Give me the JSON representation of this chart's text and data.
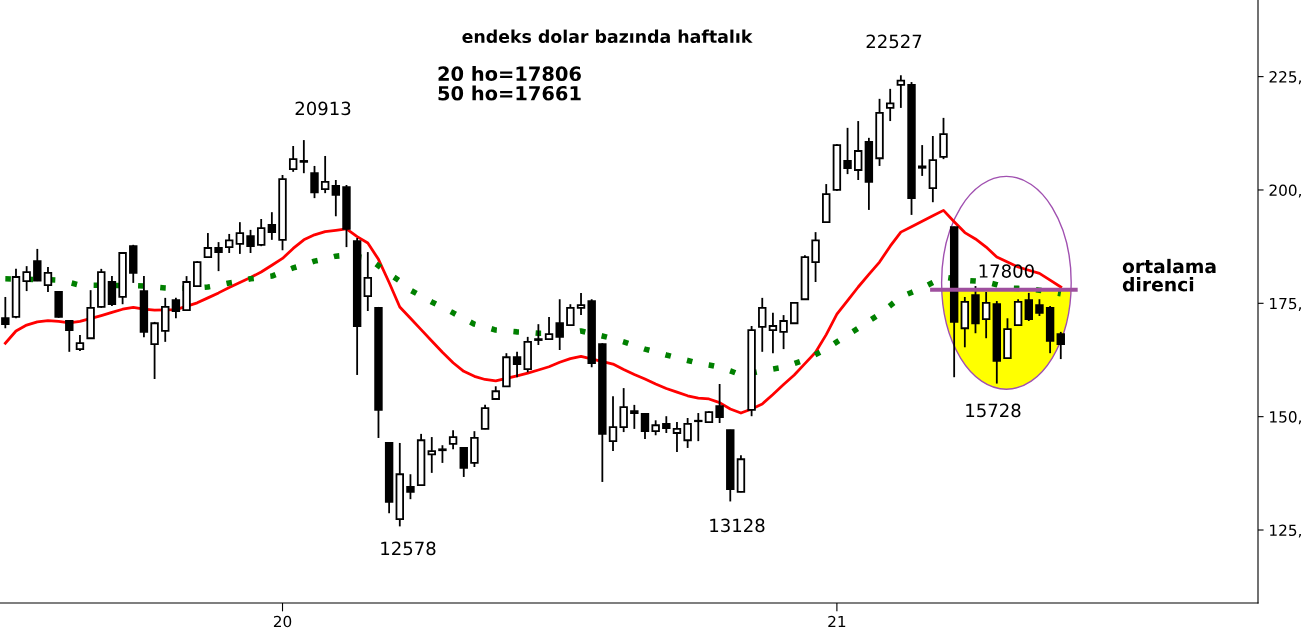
{
  "chart_data": {
    "type": "candlestick",
    "title": "endeks dolar bazında haftalık",
    "subtitle": "20 ho=17806\n50 ho=17661",
    "annotations": [
      "20913",
      "22527",
      "12578",
      "13128",
      "15728",
      "ortalama\ndirenci"
    ],
    "categories": [
      null,
      null,
      null,
      null,
      null,
      null,
      null,
      null,
      null,
      null,
      null,
      null,
      null,
      null,
      null,
      null,
      null,
      null,
      null,
      null,
      null,
      null,
      null,
      null,
      null,
      null,
      "20",
      null,
      null,
      null,
      null,
      null,
      null,
      null,
      null,
      null,
      null,
      null,
      null,
      null,
      null,
      null,
      null,
      null,
      null,
      null,
      null,
      null,
      null,
      null,
      null,
      null,
      null,
      null,
      null,
      null,
      null,
      null,
      null,
      null,
      null,
      null,
      null,
      null,
      null,
      null,
      null,
      null,
      null,
      null,
      null,
      null,
      null,
      null,
      null,
      null,
      null,
      null,
      "21",
      null,
      null,
      null,
      null,
      null,
      null,
      null,
      null,
      null,
      null,
      null,
      null,
      null,
      null,
      null,
      null,
      null,
      null,
      null,
      null,
      null,
      null,
      null,
      null,
      null,
      null,
      null,
      null,
      null,
      null,
      null,
      null,
      null,
      null,
      null,
      null,
      null,
      null,
      null
    ],
    "ohlc": [
      [
        171.7,
        176.4,
        169.5,
        170.4
      ],
      [
        172.0,
        182.6,
        171.7,
        180.8
      ],
      [
        179.9,
        183.2,
        177.7,
        181.9
      ],
      [
        184.3,
        187.0,
        179.9,
        180.0
      ],
      [
        179.0,
        183.0,
        177.5,
        181.7
      ],
      [
        177.5,
        177.7,
        171.8,
        172.0
      ],
      [
        171.1,
        171.3,
        164.3,
        169.1
      ],
      [
        164.9,
        168.0,
        164.5,
        166.2
      ],
      [
        167.3,
        177.9,
        167.2,
        174.0
      ],
      [
        174.2,
        182.6,
        174.0,
        181.9
      ],
      [
        179.7,
        181.0,
        174.4,
        174.8
      ],
      [
        176.4,
        186.2,
        174.8,
        186.1
      ],
      [
        187.6,
        187.9,
        179.5,
        181.7
      ],
      [
        177.7,
        181.0,
        167.5,
        168.7
      ],
      [
        166.0,
        170.9,
        158.3,
        170.6
      ],
      [
        168.9,
        176.2,
        166.5,
        174.2
      ],
      [
        175.7,
        176.2,
        171.7,
        173.3
      ],
      [
        173.5,
        181.0,
        173.4,
        179.7
      ],
      [
        178.8,
        184.3,
        178.7,
        184.1
      ],
      [
        185.2,
        190.5,
        185.1,
        187.2
      ],
      [
        187.2,
        188.5,
        182.1,
        186.3
      ],
      [
        187.4,
        190.3,
        186.1,
        188.9
      ],
      [
        188.1,
        192.9,
        185.9,
        190.5
      ],
      [
        189.8,
        191.2,
        186.1,
        187.6
      ],
      [
        187.9,
        193.6,
        187.6,
        191.6
      ],
      [
        192.3,
        195.1,
        189.0,
        190.7
      ],
      [
        189.0,
        203.3,
        186.7,
        202.4
      ],
      [
        204.6,
        209.7,
        204.0,
        206.8
      ],
      [
        206.2,
        211.0,
        203.7,
        206.4
      ],
      [
        203.7,
        205.3,
        198.2,
        199.5
      ],
      [
        200.2,
        207.5,
        199.3,
        201.8
      ],
      [
        200.9,
        202.2,
        194.2,
        198.9
      ],
      [
        200.6,
        201.1,
        187.4,
        191.4
      ],
      [
        188.7,
        189.4,
        159.2,
        170.0
      ],
      [
        176.6,
        186.3,
        173.3,
        180.6
      ],
      [
        174.0,
        174.2,
        145.3,
        151.5
      ],
      [
        144.2,
        144.3,
        128.7,
        131.2
      ],
      [
        127.4,
        144.2,
        125.8,
        137.3
      ],
      [
        134.5,
        137.3,
        131.8,
        133.4
      ],
      [
        134.9,
        146.2,
        134.7,
        144.8
      ],
      [
        141.7,
        145.5,
        137.6,
        142.4
      ],
      [
        142.6,
        143.7,
        139.8,
        142.8
      ],
      [
        144.0,
        147.0,
        142.8,
        145.5
      ],
      [
        143.1,
        143.2,
        136.7,
        138.7
      ],
      [
        139.8,
        146.8,
        138.9,
        145.3
      ],
      [
        147.3,
        152.6,
        147.2,
        151.9
      ],
      [
        153.9,
        156.7,
        153.8,
        155.6
      ],
      [
        156.7,
        164.0,
        156.6,
        163.1
      ],
      [
        163.1,
        164.3,
        158.7,
        161.6
      ],
      [
        160.5,
        167.6,
        159.8,
        166.5
      ],
      [
        166.9,
        170.4,
        165.8,
        167.1
      ],
      [
        167.1,
        172.0,
        167.0,
        168.2
      ],
      [
        170.6,
        175.9,
        164.7,
        167.6
      ],
      [
        170.2,
        174.8,
        170.1,
        174.0
      ],
      [
        174.0,
        177.3,
        172.4,
        174.6
      ],
      [
        175.5,
        175.9,
        160.9,
        161.8
      ],
      [
        166.0,
        166.2,
        135.6,
        146.2
      ],
      [
        144.6,
        154.5,
        142.4,
        147.7
      ],
      [
        147.7,
        156.3,
        146.6,
        152.1
      ],
      [
        151.2,
        152.6,
        147.3,
        150.8
      ],
      [
        150.6,
        150.7,
        145.1,
        146.8
      ],
      [
        146.8,
        149.2,
        145.9,
        148.1
      ],
      [
        148.4,
        150.1,
        146.4,
        147.5
      ],
      [
        146.4,
        148.8,
        142.2,
        147.3
      ],
      [
        144.8,
        149.7,
        143.1,
        148.4
      ],
      [
        149.0,
        150.8,
        144.6,
        149.1
      ],
      [
        148.8,
        151.2,
        148.7,
        151.0
      ],
      [
        152.3,
        157.2,
        148.6,
        149.9
      ],
      [
        147.0,
        147.1,
        131.3,
        134.0
      ],
      [
        133.4,
        141.5,
        133.3,
        140.6
      ],
      [
        151.5,
        170.0,
        150.1,
        169.1
      ],
      [
        169.8,
        176.2,
        164.3,
        174.0
      ],
      [
        169.1,
        172.9,
        164.0,
        170.0
      ],
      [
        168.7,
        172.4,
        164.9,
        171.1
      ],
      [
        170.6,
        175.2,
        170.5,
        175.1
      ],
      [
        175.9,
        185.6,
        175.8,
        185.2
      ],
      [
        184.1,
        190.7,
        179.7,
        188.9
      ],
      [
        192.9,
        201.3,
        192.8,
        199.1
      ],
      [
        200.0,
        210.1,
        199.8,
        209.9
      ],
      [
        206.4,
        213.7,
        203.5,
        204.8
      ],
      [
        204.4,
        215.2,
        202.2,
        208.6
      ],
      [
        210.6,
        211.5,
        195.6,
        201.8
      ],
      [
        207.0,
        220.1,
        205.3,
        217.0
      ],
      [
        218.1,
        222.3,
        215.2,
        219.1
      ],
      [
        223.2,
        225.3,
        218.1,
        224.1
      ],
      [
        223.2,
        223.8,
        194.5,
        198.2
      ],
      [
        205.2,
        209.9,
        203.1,
        204.9
      ],
      [
        200.4,
        211.9,
        197.3,
        206.6
      ],
      [
        207.3,
        215.9,
        206.8,
        212.3
      ],
      [
        191.8,
        191.9,
        158.7,
        170.9
      ],
      [
        169.5,
        176.4,
        165.3,
        175.3
      ],
      [
        176.8,
        178.8,
        168.4,
        170.6
      ],
      [
        171.5,
        177.5,
        167.3,
        175.1
      ],
      [
        174.8,
        175.5,
        157.3,
        162.3
      ],
      [
        162.9,
        171.7,
        162.8,
        169.3
      ],
      [
        170.2,
        175.9,
        170.0,
        175.3
      ],
      [
        175.7,
        177.3,
        171.1,
        171.5
      ],
      [
        174.6,
        175.9,
        172.2,
        172.9
      ],
      [
        174.0,
        174.4,
        164.0,
        166.7
      ],
      [
        168.2,
        168.7,
        162.7,
        166.0
      ],
      null,
      null,
      null,
      null,
      null,
      null,
      null,
      null,
      null,
      null,
      null,
      null,
      null,
      null,
      null,
      null,
      null,
      null
    ],
    "series": [
      {
        "type": "line",
        "color": "#ff0000",
        "line_style": "solid",
        "values": [
          166.2,
          168.9,
          170.2,
          170.9,
          171.2,
          171.0,
          170.7,
          171.0,
          null,
          172.3,
          173.0,
          173.7,
          174.1,
          173.7,
          173.5,
          null,
          173.6,
          null,
          175.1,
          176.2,
          177.3,
          178.5,
          179.6,
          180.7,
          181.9,
          183.4,
          184.9,
          187.1,
          189.0,
          190.1,
          190.8,
          191.1,
          191.4,
          189.7,
          188.3,
          184.7,
          179.6,
          174.2,
          171.7,
          169.2,
          166.7,
          164.2,
          161.9,
          160.0,
          158.9,
          158.2,
          157.9,
          null,
          159.0,
          159.6,
          160.3,
          161.0,
          162.0,
          162.8,
          163.3,
          null,
          null,
          161.6,
          160.4,
          159.3,
          158.3,
          157.2,
          156.2,
          155.4,
          154.6,
          154.1,
          153.9,
          153.1,
          151.7,
          150.8,
          151.7,
          152.8,
          154.9,
          157.1,
          159.2,
          161.7,
          164.2,
          168.1,
          172.6,
          175.6,
          178.6,
          181.4,
          184.1,
          187.6,
          190.7,
          191.9,
          193.1,
          194.3,
          195.5,
          193.0,
          190.6,
          189.2,
          187.4,
          185.2,
          184.1,
          183.0,
          182.3,
          181.6,
          180.1,
          178.6,
          null,
          null,
          null,
          null,
          null,
          null,
          null,
          null,
          null,
          null,
          null,
          null,
          null,
          null,
          null,
          null,
          null,
          null
        ]
      },
      {
        "type": "line",
        "color": "#008000",
        "line_style": "dotted",
        "values": [
          180.4,
          null,
          180.3,
          null,
          180.2,
          180.1,
          179.6,
          179.0,
          179.0,
          null,
          null,
          null,
          178.9,
          178.8,
          178.6,
          178.4,
          178.3,
          null,
          178.4,
          178.6,
          179.0,
          179.5,
          179.9,
          180.4,
          180.7,
          181.0,
          181.9,
          182.8,
          183.5,
          184.3,
          184.8,
          185.4,
          185.6,
          null,
          185.0,
          183.3,
          181.5,
          179.9,
          177.9,
          176.6,
          175.3,
          174.1,
          172.9,
          171.6,
          170.4,
          169.8,
          169.1,
          168.9,
          168.7,
          168.6,
          168.4,
          168.4,
          168.4,
          168.6,
          168.9,
          null,
          167.8,
          167.2,
          166.5,
          165.7,
          164.9,
          164.3,
          163.6,
          163.0,
          162.4,
          161.8,
          161.4,
          160.9,
          160.1,
          159.2,
          null,
          160.1,
          160.5,
          160.9,
          161.7,
          162.5,
          163.7,
          164.9,
          166.5,
          168.0,
          169.5,
          171.1,
          172.6,
          174.5,
          176.4,
          177.4,
          178.4,
          179.6,
          180.8,
          null,
          180.1,
          179.9,
          179.7,
          179.1,
          178.4,
          178.3,
          178.2,
          177.9,
          177.5,
          177.1,
          null,
          null,
          null,
          null,
          null,
          null,
          null,
          null,
          null,
          null,
          null,
          null,
          null,
          null,
          null,
          null,
          null,
          null
        ]
      }
    ],
    "ref_lines": [
      {
        "axis": "y",
        "value": 178.0,
        "label": "17800",
        "color": "#9e4f9e"
      }
    ],
    "ylim": [
      108.9,
      241.9
    ],
    "yticks": [
      {
        "value": 125,
        "label": "125,"
      },
      {
        "value": 150,
        "label": "150,"
      },
      {
        "value": 175,
        "label": "175,"
      },
      {
        "value": 200,
        "label": "200,"
      },
      {
        "value": 225,
        "label": "225,"
      }
    ],
    "grid": false,
    "legend": false
  }
}
